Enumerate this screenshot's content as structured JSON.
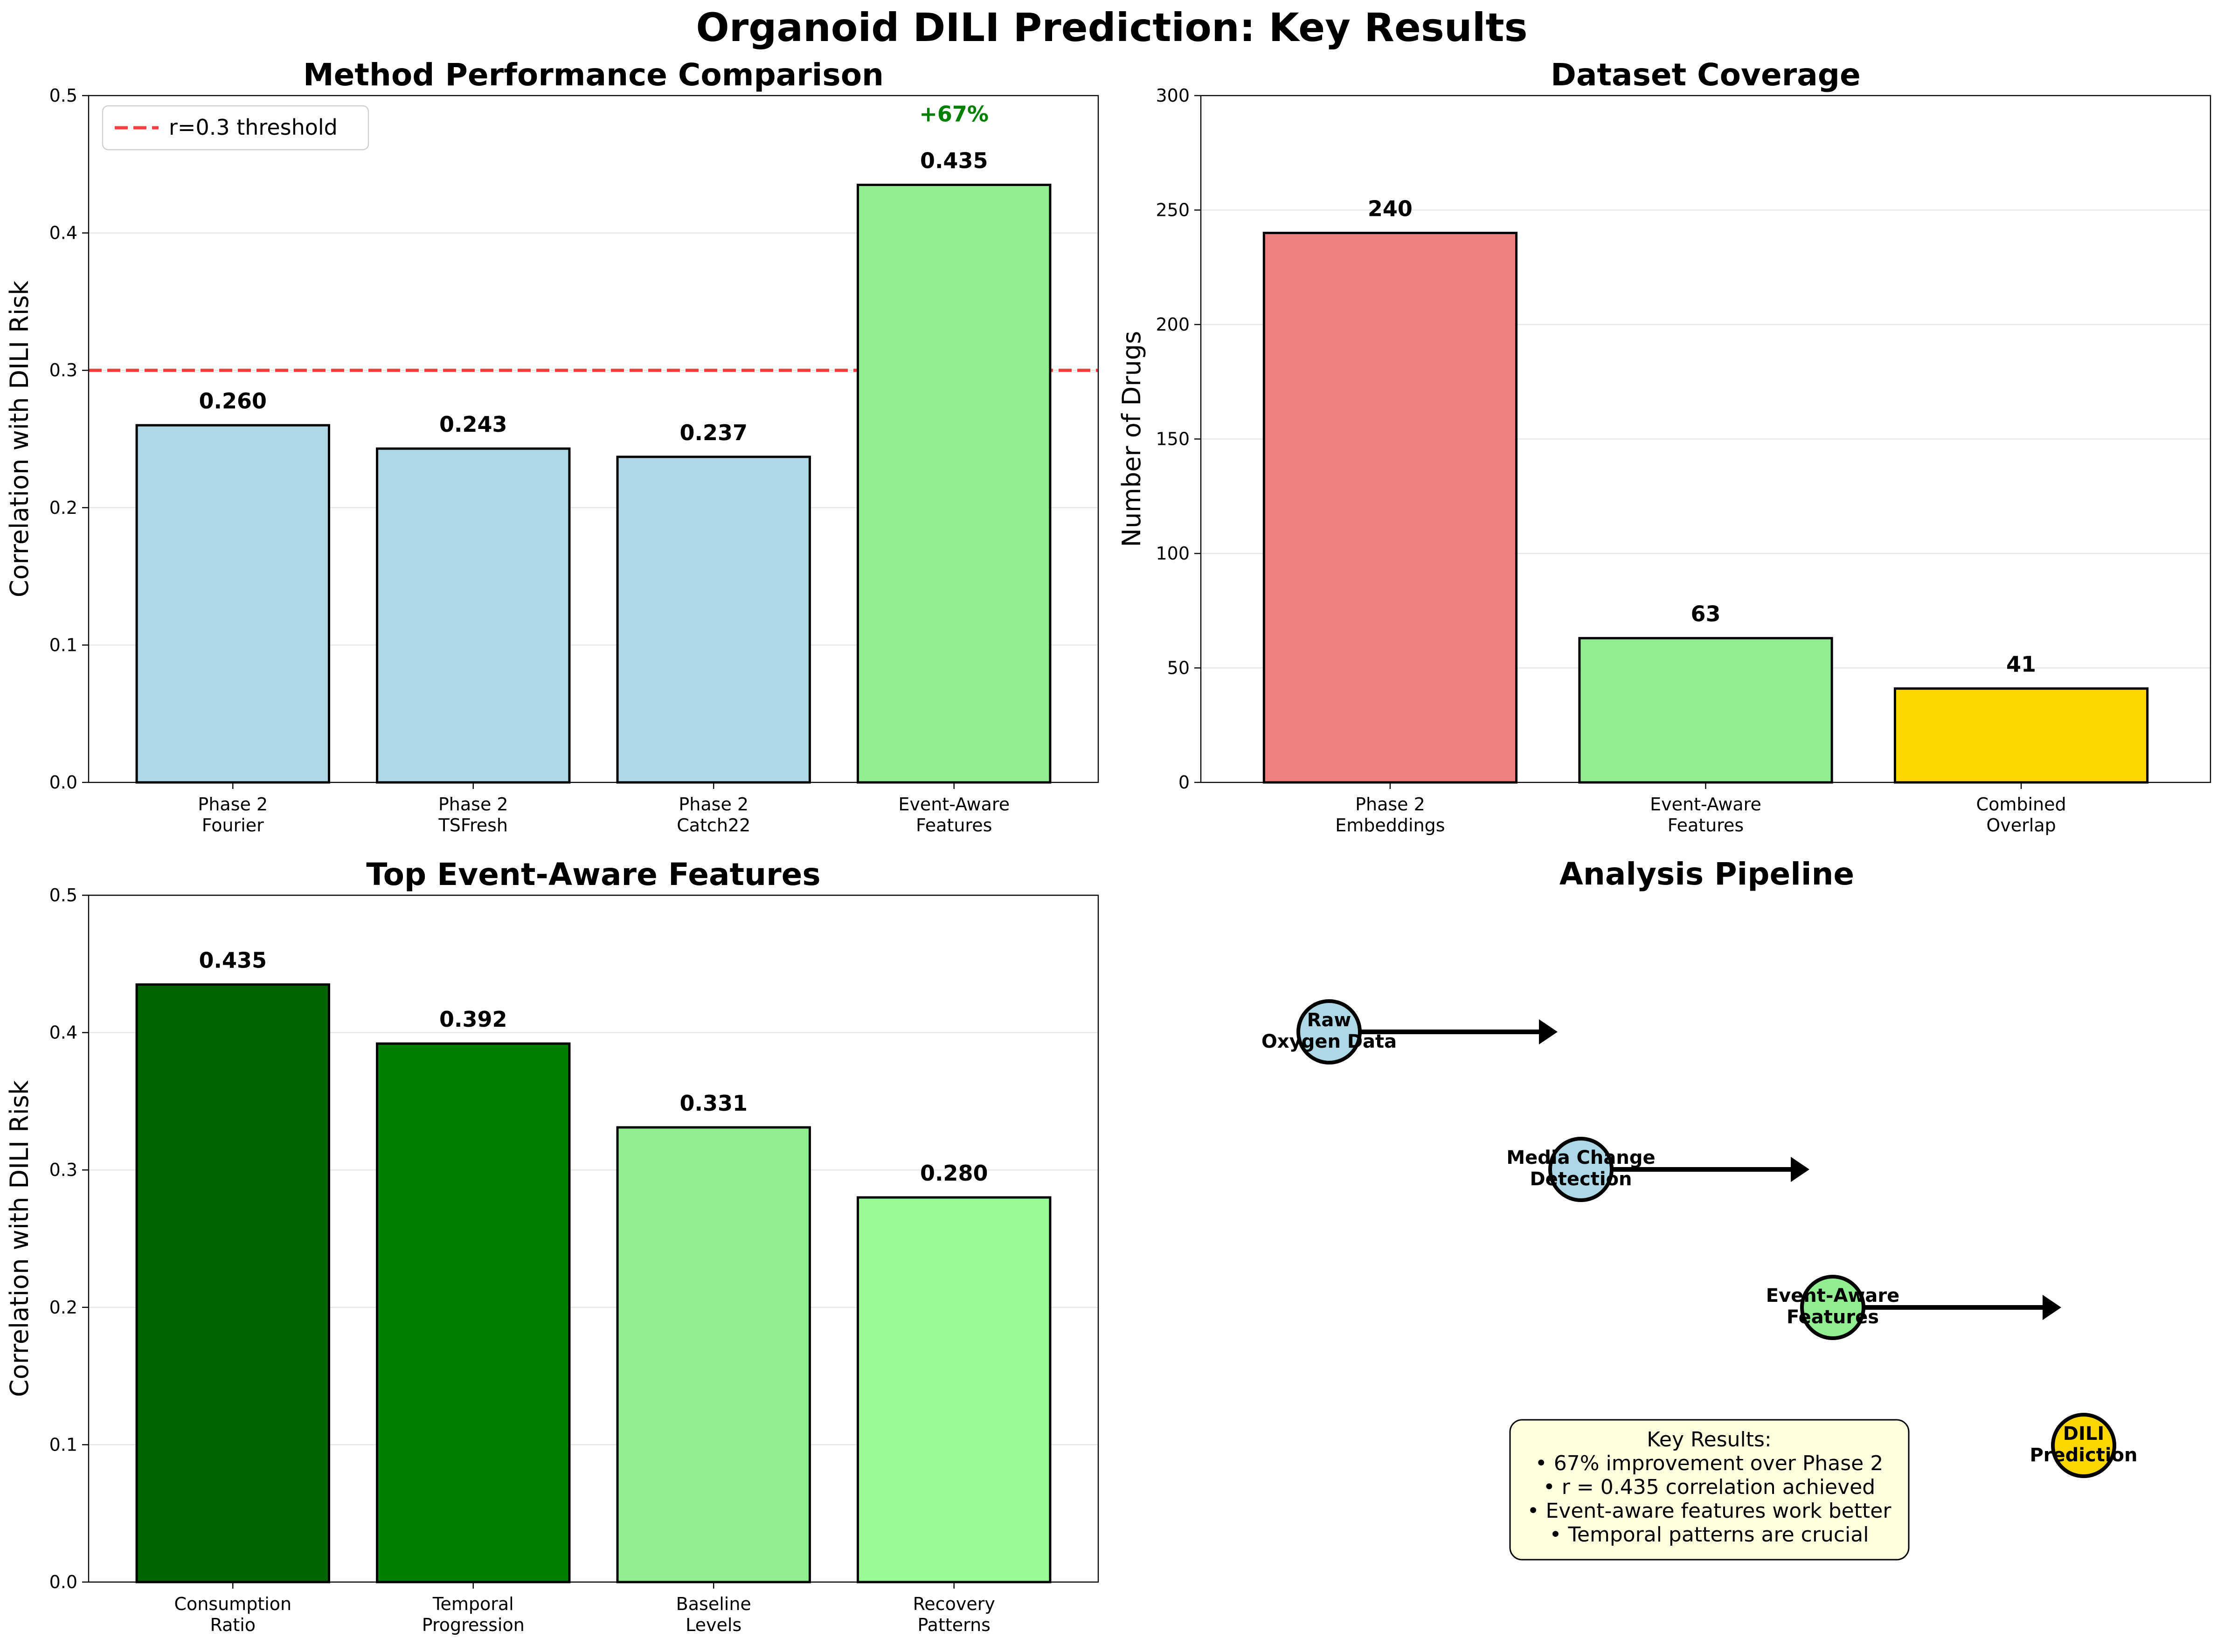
{
  "figure": {
    "suptitle": "Organoid DILI Prediction: Key Results"
  },
  "colors": {
    "light_blue": "#add8e6",
    "light_green": "#90ee90",
    "light_coral": "#f08080",
    "gold": "#ffd700",
    "dark_green": "#006400",
    "green": "#008000",
    "pale_green": "#98fb98",
    "threshold_red": "#ff0000",
    "annotation_green": "#008000",
    "note_fill": "#ffffe0"
  },
  "chart_data": [
    {
      "id": "method",
      "type": "bar",
      "title": "Method Performance Comparison",
      "ylabel": "Correlation with DILI Risk",
      "xlabel": "",
      "ylim": [
        0,
        0.5
      ],
      "yticks": [
        "0.0",
        "0.1",
        "0.2",
        "0.3",
        "0.4",
        "0.5"
      ],
      "grid": "y",
      "categories": [
        [
          "Phase 2",
          "Fourier"
        ],
        [
          "Phase 2",
          "TSFresh"
        ],
        [
          "Phase 2",
          "Catch22"
        ],
        [
          "Event-Aware",
          "Features"
        ]
      ],
      "values": [
        0.26,
        0.243,
        0.237,
        0.435
      ],
      "value_labels": [
        "0.260",
        "0.243",
        "0.237",
        "0.435"
      ],
      "bar_colors": [
        "#add8e6",
        "#add8e6",
        "#add8e6",
        "#90ee90"
      ],
      "threshold": {
        "value": 0.3,
        "label": "r=0.3 threshold"
      },
      "legend": "top-left",
      "annotation": {
        "text": "+67%",
        "bar_index": 3
      }
    },
    {
      "id": "coverage",
      "type": "bar",
      "title": "Dataset Coverage",
      "ylabel": "Number of Drugs",
      "xlabel": "",
      "ylim": [
        0,
        300
      ],
      "yticks": [
        "0",
        "50",
        "100",
        "150",
        "200",
        "250",
        "300"
      ],
      "grid": "y",
      "categories": [
        [
          "Phase 2",
          "Embeddings"
        ],
        [
          "Event-Aware",
          "Features"
        ],
        [
          "Combined",
          "Overlap"
        ]
      ],
      "values": [
        240,
        63,
        41
      ],
      "value_labels": [
        "240",
        "63",
        "41"
      ],
      "bar_colors": [
        "#f08080",
        "#90ee90",
        "#ffd700"
      ]
    },
    {
      "id": "features",
      "type": "bar",
      "title": "Top Event-Aware Features",
      "ylabel": "Correlation with DILI Risk",
      "xlabel": "",
      "ylim": [
        0,
        0.5
      ],
      "yticks": [
        "0.0",
        "0.1",
        "0.2",
        "0.3",
        "0.4",
        "0.5"
      ],
      "grid": "y",
      "categories": [
        [
          "Consumption",
          "Ratio"
        ],
        [
          "Temporal",
          "Progression"
        ],
        [
          "Baseline",
          "Levels"
        ],
        [
          "Recovery",
          "Patterns"
        ]
      ],
      "values": [
        0.435,
        0.392,
        0.331,
        0.28
      ],
      "value_labels": [
        "0.435",
        "0.392",
        "0.331",
        "0.280"
      ],
      "bar_colors": [
        "#006400",
        "#008000",
        "#90ee90",
        "#98fb98"
      ]
    }
  ],
  "pipeline": {
    "title": "Analysis Pipeline",
    "steps": [
      {
        "lines": [
          "Raw",
          "Oxygen Data"
        ],
        "color": "#add8e6"
      },
      {
        "lines": [
          "Media Change",
          "Detection"
        ],
        "color": "#add8e6"
      },
      {
        "lines": [
          "Event-Aware",
          "Features"
        ],
        "color": "#90ee90"
      },
      {
        "lines": [
          "DILI",
          "Prediction"
        ],
        "color": "#ffd700"
      }
    ],
    "key_results": {
      "lines": [
        "Key Results:",
        "• 67% improvement over Phase 2",
        "• r = 0.435 correlation achieved",
        "• Event-aware features work better",
        "• Temporal patterns are crucial"
      ]
    }
  }
}
